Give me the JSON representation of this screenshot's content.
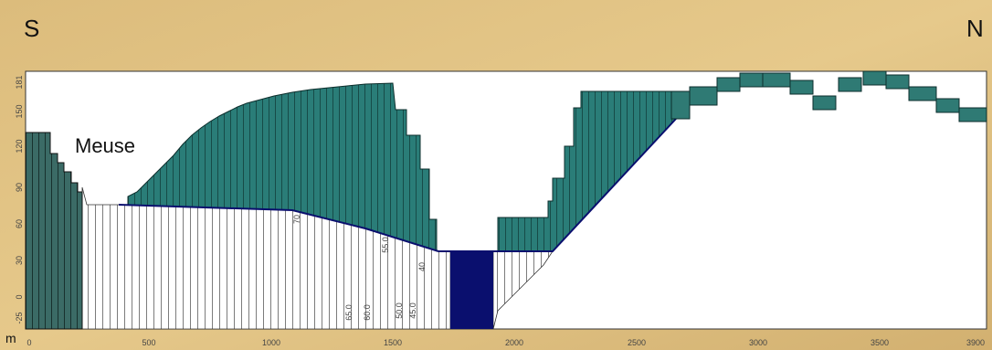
{
  "header": {
    "left": "S",
    "right": "N"
  },
  "river_label": "Meuse",
  "y_unit": "m",
  "x_tick_labels": [
    "0",
    "500",
    "1000",
    "1500",
    "2000",
    "2500",
    "3000",
    "3500",
    "3900"
  ],
  "y_tick_labels": [
    "-25",
    "0",
    "30",
    "60",
    "90",
    "120",
    "150",
    "181"
  ],
  "inner_labels": [
    "70",
    "55.0",
    "40",
    "65.0",
    "60.0",
    "50.0",
    "45.0"
  ]
}
